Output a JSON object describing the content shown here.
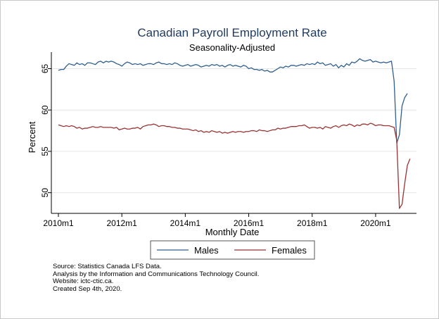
{
  "chart_data": {
    "type": "line",
    "title": "Canadian Payroll Employment Rate",
    "subtitle": "Seasonality-Adjusted",
    "xlabel": "Monthly Date",
    "ylabel": "Percent",
    "x_ticks": [
      "2010m1",
      "2012m1",
      "2014m1",
      "2016m1",
      "2018m1",
      "2020m1"
    ],
    "y_ticks": [
      "50",
      "55",
      "60",
      "65"
    ],
    "ylim": [
      47.5,
      67
    ],
    "x_start": "2010-01",
    "grid": "horizontal",
    "legend_placement": "bottom",
    "series": [
      {
        "name": "Males",
        "color": "#2f5f8f",
        "values": [
          64.8,
          64.9,
          64.9,
          65.3,
          65.6,
          65.5,
          65.4,
          65.7,
          65.5,
          65.6,
          65.4,
          65.7,
          65.7,
          65.6,
          65.5,
          65.8,
          65.9,
          65.7,
          65.9,
          65.8,
          65.9,
          65.8,
          65.6,
          65.5,
          65.3,
          65.6,
          65.8,
          65.7,
          65.5,
          65.6,
          65.5,
          65.6,
          65.4,
          65.5,
          65.6,
          65.6,
          65.5,
          65.7,
          65.8,
          65.6,
          65.6,
          65.5,
          65.6,
          65.5,
          65.7,
          65.6,
          65.4,
          65.3,
          65.4,
          65.5,
          65.3,
          65.4,
          65.5,
          65.4,
          65.2,
          65.3,
          65.4,
          65.3,
          65.5,
          65.4,
          65.5,
          65.3,
          65.4,
          65.2,
          65.4,
          65.5,
          65.3,
          65.4,
          65.3,
          65.2,
          65.4,
          65.3,
          65.0,
          65.1,
          64.9,
          64.9,
          64.8,
          64.9,
          64.7,
          64.8,
          64.6,
          64.6,
          64.8,
          65.0,
          65.2,
          65.1,
          65.3,
          65.2,
          65.4,
          65.4,
          65.3,
          65.4,
          65.5,
          65.4,
          65.6,
          65.5,
          65.6,
          65.5,
          65.8,
          65.6,
          65.7,
          65.4,
          65.5,
          65.6,
          65.3,
          65.5,
          65.1,
          65.4,
          65.2,
          65.6,
          65.4,
          65.8,
          65.7,
          65.9,
          66.2,
          66.0,
          65.9,
          66.0,
          66.1,
          65.8,
          65.9,
          65.8,
          65.7,
          65.8,
          65.7,
          65.8,
          65.9,
          63.5,
          56.0,
          57.0,
          60.5,
          61.5,
          62.0
        ]
      },
      {
        "name": "Females",
        "color": "#993333",
        "values": [
          58.2,
          58.1,
          58.0,
          58.1,
          58.0,
          58.1,
          58.0,
          57.8,
          57.9,
          57.7,
          57.8,
          57.8,
          57.9,
          58.0,
          57.9,
          57.9,
          58.0,
          57.9,
          57.9,
          57.9,
          57.9,
          57.8,
          57.9,
          57.6,
          57.7,
          57.8,
          57.7,
          57.7,
          57.8,
          57.8,
          57.9,
          57.7,
          58.0,
          58.1,
          58.2,
          58.2,
          58.3,
          58.2,
          58.0,
          58.1,
          58.1,
          58.0,
          58.0,
          57.9,
          57.9,
          57.8,
          57.8,
          57.7,
          57.7,
          57.7,
          57.6,
          57.5,
          57.6,
          57.4,
          57.5,
          57.3,
          57.4,
          57.3,
          57.5,
          57.4,
          57.3,
          57.4,
          57.2,
          57.3,
          57.2,
          57.3,
          57.4,
          57.3,
          57.4,
          57.4,
          57.3,
          57.4,
          57.4,
          57.5,
          57.5,
          57.4,
          57.6,
          57.5,
          57.5,
          57.4,
          57.5,
          57.6,
          57.6,
          57.8,
          57.7,
          57.8,
          57.8,
          57.9,
          58.0,
          58.0,
          58.0,
          58.1,
          58.1,
          58.2,
          58.0,
          57.8,
          57.9,
          57.9,
          57.8,
          57.9,
          57.7,
          58.0,
          57.9,
          57.8,
          58.0,
          58.1,
          57.9,
          58.1,
          58.2,
          58.1,
          58.3,
          58.2,
          58.0,
          58.2,
          58.1,
          58.3,
          58.3,
          58.2,
          58.4,
          58.3,
          58.1,
          58.2,
          58.2,
          58.1,
          58.1,
          58.1,
          58.0,
          57.9,
          56.3,
          48.1,
          48.6,
          51.1,
          53.3,
          54.1
        ]
      }
    ]
  },
  "notes": {
    "line1": "Source: Statistics Canada LFS Data.",
    "line2": "Analysis by the Information and Communications Technology Council.",
    "line3": "Website: ictc-ctic.ca.",
    "line4": "Created Sep 4th, 2020."
  }
}
